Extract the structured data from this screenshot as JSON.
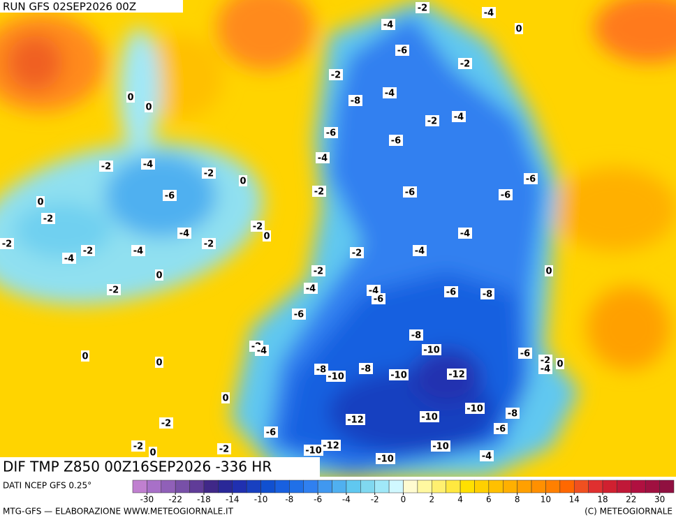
{
  "header": {
    "run": "RUN GFS 02SEP2026 00Z"
  },
  "map": {
    "field": "DIF TMP Z850 00Z16SEP2026 -336 HR",
    "contour_labels": [
      -2,
      -4,
      0,
      -4,
      -6,
      -2,
      -2,
      -4,
      -8,
      0,
      0,
      -2,
      -4,
      -6,
      -6,
      -4,
      -2,
      -4,
      -2,
      0,
      -6,
      -2,
      -6,
      -6,
      -6,
      0,
      -2,
      -2,
      0,
      -4,
      -4,
      -2,
      -2,
      -2,
      -4,
      -4,
      -2,
      -4,
      0,
      -2,
      0,
      -2,
      -4,
      -4,
      -6,
      -6,
      -8,
      -6,
      -8,
      -10,
      -2,
      -4,
      -6,
      -2,
      -4,
      0,
      0,
      0,
      -8,
      -10,
      -8,
      -10,
      -12,
      0,
      -10,
      -8,
      -12,
      -10,
      -2,
      -6,
      -6,
      -10,
      -10,
      -12,
      -2,
      0,
      -2,
      -10,
      -4
    ]
  },
  "legend": {
    "source": "DATI NCEP GFS 0.25°",
    "colors": [
      "#c080d0",
      "#a870c8",
      "#9060b8",
      "#7850a8",
      "#603c98",
      "#402888",
      "#2a2898",
      "#2030b0",
      "#1840c0",
      "#1050d0",
      "#1860e0",
      "#2070e8",
      "#3080f0",
      "#4098f0",
      "#50b0f0",
      "#60c8f0",
      "#80d8f0",
      "#a0e8f8",
      "#d0f8ff",
      "#fffbd0",
      "#fff8a0",
      "#fff070",
      "#ffe840",
      "#ffe000",
      "#ffd000",
      "#ffc000",
      "#ffb000",
      "#ffa000",
      "#ff9000",
      "#ff8000",
      "#ff6800",
      "#f05020",
      "#e03030",
      "#d02030",
      "#c01838",
      "#b01040",
      "#a01040",
      "#901040"
    ],
    "ticks": [
      -30,
      -22,
      -18,
      -14,
      -10,
      -8,
      -6,
      -4,
      -2,
      0,
      2,
      4,
      6,
      8,
      10,
      14,
      18,
      22,
      30
    ]
  },
  "footer": {
    "left": "MTG-GFS — ELABORAZIONE WWW.METEOGIORNALE.IT",
    "right": "(C) METEOGIORNALE"
  }
}
